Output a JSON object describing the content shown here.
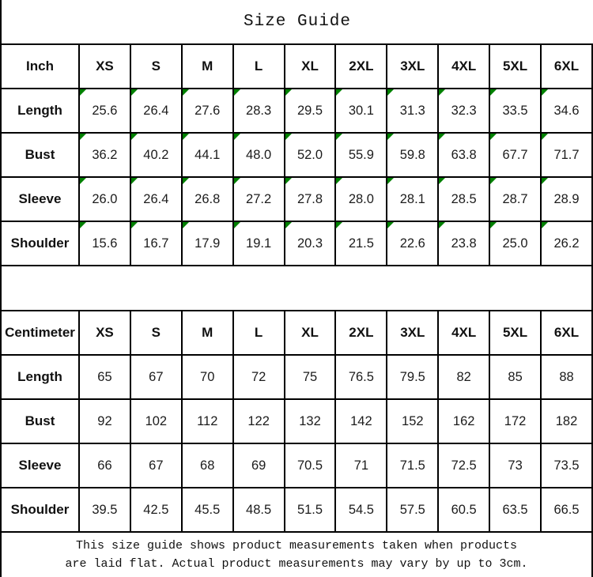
{
  "title": "Size Guide",
  "colors": {
    "flag_green": "#008000",
    "border": "#000000",
    "background": "#ffffff",
    "text": "#000000"
  },
  "tables": [
    {
      "unit": "Inch",
      "sizes": [
        "XS",
        "S",
        "M",
        "L",
        "XL",
        "2XL",
        "3XL",
        "4XL",
        "5XL",
        "6XL"
      ],
      "flagged": true,
      "rows": [
        {
          "label": "Length",
          "values": [
            "25.6",
            "26.4",
            "27.6",
            "28.3",
            "29.5",
            "30.1",
            "31.3",
            "32.3",
            "33.5",
            "34.6"
          ]
        },
        {
          "label": "Bust",
          "values": [
            "36.2",
            "40.2",
            "44.1",
            "48.0",
            "52.0",
            "55.9",
            "59.8",
            "63.8",
            "67.7",
            "71.7"
          ]
        },
        {
          "label": "Sleeve",
          "values": [
            "26.0",
            "26.4",
            "26.8",
            "27.2",
            "27.8",
            "28.0",
            "28.1",
            "28.5",
            "28.7",
            "28.9"
          ]
        },
        {
          "label": "Shoulder",
          "values": [
            "15.6",
            "16.7",
            "17.9",
            "19.1",
            "20.3",
            "21.5",
            "22.6",
            "23.8",
            "25.0",
            "26.2"
          ]
        }
      ]
    },
    {
      "unit": "Centimeter",
      "sizes": [
        "XS",
        "S",
        "M",
        "L",
        "XL",
        "2XL",
        "3XL",
        "4XL",
        "5XL",
        "6XL"
      ],
      "flagged": false,
      "rows": [
        {
          "label": "Length",
          "values": [
            "65",
            "67",
            "70",
            "72",
            "75",
            "76.5",
            "79.5",
            "82",
            "85",
            "88"
          ]
        },
        {
          "label": "Bust",
          "values": [
            "92",
            "102",
            "112",
            "122",
            "132",
            "142",
            "152",
            "162",
            "172",
            "182"
          ]
        },
        {
          "label": "Sleeve",
          "values": [
            "66",
            "67",
            "68",
            "69",
            "70.5",
            "71",
            "71.5",
            "72.5",
            "73",
            "73.5"
          ]
        },
        {
          "label": "Shoulder",
          "values": [
            "39.5",
            "42.5",
            "45.5",
            "48.5",
            "51.5",
            "54.5",
            "57.5",
            "60.5",
            "63.5",
            "66.5"
          ]
        }
      ]
    }
  ],
  "footer": {
    "line1": "This size guide shows product measurements taken when products",
    "line2": "are laid flat. Actual product measurements may vary by up to 3cm."
  }
}
